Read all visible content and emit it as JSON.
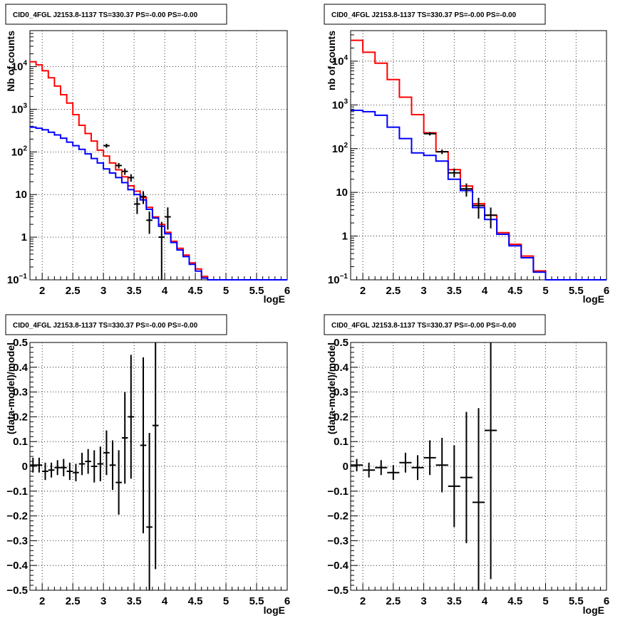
{
  "chart_data": [
    {
      "type": "line",
      "title": "CID0_4FGL J2153.8-1137 TS=330.37 PS=-0.00 PS=-0.00",
      "xlabel": "logE",
      "ylabel": "Nb of counts",
      "yscale": "log",
      "xlim": [
        1.8,
        6.0
      ],
      "ylim": [
        0.1,
        70000
      ],
      "grid": true,
      "x_ticks": [
        "2",
        "2.5",
        "3",
        "3.5",
        "4",
        "4.5",
        "5",
        "5.5",
        "6"
      ],
      "y_ticks": [
        {
          "value": 0.1,
          "label": "10",
          "exp": "−1"
        },
        {
          "value": 1,
          "label": "1",
          "exp": ""
        },
        {
          "value": 10,
          "label": "10",
          "exp": ""
        },
        {
          "value": 100,
          "label": "10",
          "exp": "2"
        },
        {
          "value": 1000,
          "label": "10",
          "exp": "3"
        },
        {
          "value": 10000,
          "label": "10",
          "exp": "4"
        }
      ],
      "bin_edges": [
        1.8,
        1.9,
        2.0,
        2.1,
        2.2,
        2.3,
        2.4,
        2.5,
        2.6,
        2.7,
        2.8,
        2.9,
        3.0,
        3.1,
        3.2,
        3.3,
        3.4,
        3.5,
        3.6,
        3.7,
        3.8,
        3.9,
        4.0,
        4.1,
        4.2,
        4.3,
        4.4,
        4.5,
        4.6,
        4.7,
        4.8,
        4.9,
        5.0,
        5.1,
        5.2,
        5.3,
        5.4,
        5.5,
        5.6,
        5.7,
        5.8,
        5.9,
        6.0
      ],
      "series": [
        {
          "color": "#ff0000",
          "values": [
            13000,
            11000,
            8000,
            5500,
            3500,
            2200,
            1400,
            750,
            420,
            270,
            180,
            110,
            80,
            55,
            38,
            26,
            16,
            12,
            8.5,
            5,
            3,
            2,
            1.3,
            0.8,
            0.55,
            0.38,
            0.25,
            0.18,
            0.12,
            0.1,
            0.1,
            0.1,
            0.1,
            0.1,
            0.1,
            0.1,
            0.1,
            0.1,
            0.1,
            0.1,
            0.1,
            0.1
          ]
        },
        {
          "color": "#0000ff",
          "values": [
            380,
            360,
            330,
            290,
            250,
            210,
            170,
            140,
            115,
            90,
            70,
            55,
            40,
            32,
            25,
            19,
            13,
            10,
            7.5,
            4.5,
            2.8,
            1.8,
            1.2,
            0.75,
            0.5,
            0.35,
            0.23,
            0.16,
            0.11,
            0.1,
            0.1,
            0.1,
            0.1,
            0.1,
            0.1,
            0.1,
            0.1,
            0.1,
            0.1,
            0.1,
            0.1,
            0.1
          ]
        }
      ],
      "data_points": [
        {
          "x": 3.05,
          "y": 140,
          "ylo": 125,
          "yhi": 155
        },
        {
          "x": 3.25,
          "y": 48,
          "ylo": 41,
          "yhi": 55
        },
        {
          "x": 3.35,
          "y": 35,
          "ylo": 29,
          "yhi": 41
        },
        {
          "x": 3.45,
          "y": 25,
          "ylo": 20,
          "yhi": 30
        },
        {
          "x": 3.55,
          "y": 6,
          "ylo": 3.5,
          "yhi": 8.5
        },
        {
          "x": 3.65,
          "y": 9,
          "ylo": 6,
          "yhi": 12
        },
        {
          "x": 3.75,
          "y": 2.5,
          "ylo": 1.2,
          "yhi": 4
        },
        {
          "x": 3.95,
          "y": 1,
          "ylo": 0.1,
          "yhi": 2.3
        },
        {
          "x": 4.05,
          "y": 3,
          "ylo": 1.5,
          "yhi": 5
        }
      ]
    },
    {
      "type": "line",
      "title": "CID0_4FGL J2153.8-1137 TS=330.37 PS=-0.00 PS=-0.00",
      "xlabel": "logE",
      "ylabel": "nb of counts",
      "yscale": "log",
      "xlim": [
        1.8,
        6.0
      ],
      "ylim": [
        0.1,
        50000
      ],
      "grid": true,
      "x_ticks": [
        "2",
        "2.5",
        "3",
        "3.5",
        "4",
        "4.5",
        "5",
        "5.5",
        "6"
      ],
      "y_ticks": [
        {
          "value": 0.1,
          "label": "10",
          "exp": "−1"
        },
        {
          "value": 1,
          "label": "1",
          "exp": ""
        },
        {
          "value": 10,
          "label": "10",
          "exp": ""
        },
        {
          "value": 100,
          "label": "10",
          "exp": "2"
        },
        {
          "value": 1000,
          "label": "10",
          "exp": "3"
        },
        {
          "value": 10000,
          "label": "10",
          "exp": "4"
        }
      ],
      "bin_edges": [
        1.8,
        2.0,
        2.2,
        2.4,
        2.6,
        2.8,
        3.0,
        3.2,
        3.4,
        3.6,
        3.8,
        4.0,
        4.2,
        4.4,
        4.6,
        4.8,
        5.0,
        5.2,
        5.4,
        5.6,
        5.8,
        6.0
      ],
      "series": [
        {
          "color": "#ff0000",
          "values": [
            30000,
            16000,
            9000,
            3800,
            1500,
            600,
            230,
            85,
            33,
            14,
            5.5,
            3,
            1.2,
            0.65,
            0.35,
            0.16,
            0.1,
            0.1,
            0.1,
            0.1,
            0.1
          ]
        },
        {
          "color": "#0000ff",
          "values": [
            750,
            700,
            580,
            310,
            170,
            80,
            70,
            52,
            20,
            11,
            4.5,
            2.4,
            1.1,
            0.6,
            0.32,
            0.15,
            0.1,
            0.1,
            0.1,
            0.1,
            0.1
          ]
        }
      ],
      "data_points": [
        {
          "x": 3.1,
          "y": 220,
          "ylo": 200,
          "yhi": 240
        },
        {
          "x": 3.3,
          "y": 85,
          "ylo": 75,
          "yhi": 95
        },
        {
          "x": 3.5,
          "y": 28,
          "ylo": 22,
          "yhi": 35
        },
        {
          "x": 3.7,
          "y": 12,
          "ylo": 8,
          "yhi": 16
        },
        {
          "x": 3.9,
          "y": 5,
          "ylo": 2.5,
          "yhi": 7.5
        },
        {
          "x": 4.1,
          "y": 3,
          "ylo": 1.5,
          "yhi": 4.5
        }
      ]
    },
    {
      "type": "scatter",
      "title": "CID0_4FGL J2153.8-1137 TS=330.37 PS=-0.00 PS=-0.00",
      "xlabel": "logE",
      "ylabel": "(data-model)/model",
      "xlim": [
        1.8,
        6.0
      ],
      "ylim": [
        -0.5,
        0.5
      ],
      "grid": true,
      "x_ticks": [
        "2",
        "2.5",
        "3",
        "3.5",
        "4",
        "4.5",
        "5",
        "5.5",
        "6"
      ],
      "y_ticks": [
        "−0.5",
        "−0.4",
        "−0.3",
        "−0.2",
        "−0.1",
        "0",
        "0.1",
        "0.2",
        "0.3",
        "0.4",
        "0.5"
      ],
      "bin_width": 0.1,
      "points": [
        {
          "x": 1.85,
          "y": 0.005,
          "err": 0.03
        },
        {
          "x": 1.95,
          "y": 0.005,
          "err": 0.03
        },
        {
          "x": 2.05,
          "y": -0.02,
          "err": 0.035
        },
        {
          "x": 2.15,
          "y": -0.015,
          "err": 0.03
        },
        {
          "x": 2.25,
          "y": -0.005,
          "err": 0.03
        },
        {
          "x": 2.35,
          "y": -0.005,
          "err": 0.035
        },
        {
          "x": 2.45,
          "y": -0.02,
          "err": 0.035
        },
        {
          "x": 2.55,
          "y": -0.025,
          "err": 0.035
        },
        {
          "x": 2.65,
          "y": 0.01,
          "err": 0.045
        },
        {
          "x": 2.75,
          "y": 0.02,
          "err": 0.05
        },
        {
          "x": 2.85,
          "y": 0.0,
          "err": 0.065
        },
        {
          "x": 2.95,
          "y": 0.01,
          "err": 0.07
        },
        {
          "x": 3.05,
          "y": 0.055,
          "err": 0.09
        },
        {
          "x": 3.15,
          "y": 0.005,
          "err": 0.1
        },
        {
          "x": 3.25,
          "y": -0.065,
          "err": 0.13
        },
        {
          "x": 3.35,
          "y": 0.115,
          "err": 0.185
        },
        {
          "x": 3.45,
          "y": 0.2,
          "err": 0.25
        },
        {
          "x": 3.65,
          "y": 0.085,
          "err": 0.355
        },
        {
          "x": 3.75,
          "y": -0.245,
          "err": 0.38
        },
        {
          "x": 3.85,
          "y": 0.165,
          "err": 0.58
        }
      ]
    },
    {
      "type": "scatter",
      "title": "CID0_4FGL J2153.8-1137 TS=330.37 PS=-0.00 PS=-0.00",
      "xlabel": "logE",
      "ylabel": "(data-model)/model",
      "xlim": [
        1.8,
        6.0
      ],
      "ylim": [
        -0.5,
        0.5
      ],
      "grid": true,
      "x_ticks": [
        "2",
        "2.5",
        "3",
        "3.5",
        "4",
        "4.5",
        "5",
        "5.5",
        "6"
      ],
      "y_ticks": [
        "−0.5",
        "−0.4",
        "−0.3",
        "−0.2",
        "−0.1",
        "0",
        "0.1",
        "0.2",
        "0.3",
        "0.4",
        "0.5"
      ],
      "bin_width": 0.2,
      "points": [
        {
          "x": 1.9,
          "y": 0.005,
          "err": 0.025
        },
        {
          "x": 2.1,
          "y": -0.015,
          "err": 0.03
        },
        {
          "x": 2.3,
          "y": -0.005,
          "err": 0.03
        },
        {
          "x": 2.5,
          "y": -0.025,
          "err": 0.03
        },
        {
          "x": 2.7,
          "y": 0.015,
          "err": 0.04
        },
        {
          "x": 2.9,
          "y": -0.005,
          "err": 0.05
        },
        {
          "x": 3.1,
          "y": 0.035,
          "err": 0.07
        },
        {
          "x": 3.3,
          "y": 0.005,
          "err": 0.11
        },
        {
          "x": 3.5,
          "y": -0.08,
          "err": 0.165
        },
        {
          "x": 3.7,
          "y": -0.045,
          "err": 0.265
        },
        {
          "x": 3.9,
          "y": -0.145,
          "err": 0.38
        },
        {
          "x": 4.1,
          "y": 0.145,
          "err": 0.6
        }
      ]
    }
  ]
}
